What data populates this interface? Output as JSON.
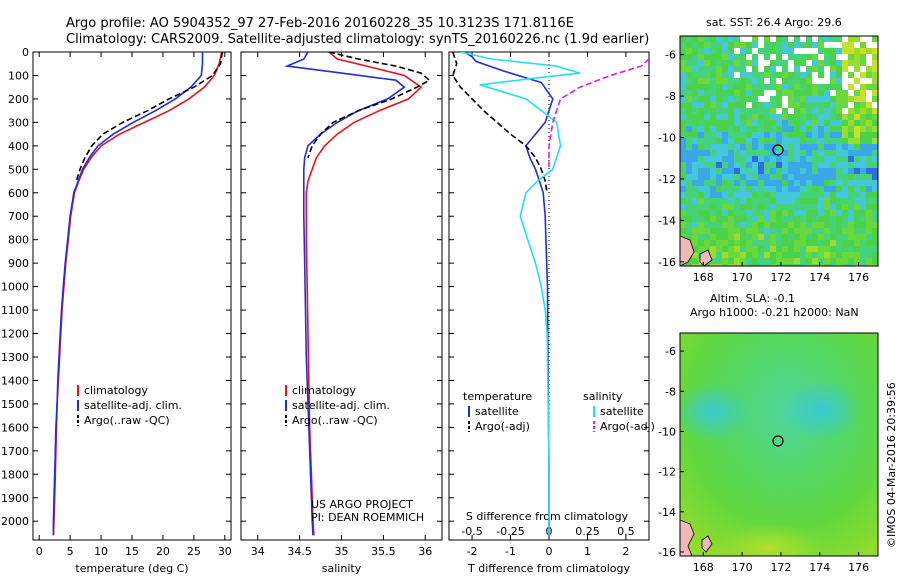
{
  "header": {
    "line1": "Argo profile: AO 5904352_97 27-Feb-2016 20160228_35 10.3123S 171.8116E",
    "line2": "Climatology: CARS2009. Satellite-adjusted climatology: synTS_20160226.nc (1.9d earlier)"
  },
  "footer_stamp": "©IMOS 04-Mar-2016 20:39:56",
  "colors": {
    "climatology": "#e8141a",
    "satellite": "#1f2fd8",
    "argo": "#000000",
    "sat_salinity": "#22e0ef",
    "argo_salinity": "#e020e0"
  },
  "chart_data": [
    {
      "id": "temperature",
      "type": "line",
      "xlabel": "temperature (deg C)",
      "ylabel": "",
      "xlim": [
        -1,
        31
      ],
      "ylim": [
        2080,
        0
      ],
      "xticks": [
        0,
        5,
        10,
        15,
        20,
        25,
        30
      ],
      "yticks": [
        0,
        100,
        200,
        300,
        400,
        500,
        600,
        700,
        800,
        900,
        1000,
        1100,
        1200,
        1300,
        1400,
        1500,
        1600,
        1700,
        1800,
        1900,
        2000
      ],
      "legend": [
        "climatology",
        "satellite-adj. clim.",
        "Argo(..raw -QC)"
      ],
      "series": [
        {
          "name": "climatology",
          "style": "solid",
          "color": "#e8141a",
          "x": [
            29.5,
            29.1,
            28.3,
            26.7,
            24.2,
            21.0,
            17.0,
            13.0,
            10.0,
            8.4,
            7.2,
            6.4,
            5.7,
            5.1,
            4.7,
            4.3,
            4.0,
            3.7,
            3.5,
            3.3,
            3.1,
            2.9,
            2.8,
            2.7,
            2.6,
            2.5,
            2.4,
            2.3
          ],
          "y": [
            0,
            50,
            100,
            150,
            200,
            250,
            300,
            350,
            400,
            450,
            500,
            550,
            600,
            700,
            800,
            900,
            1000,
            1100,
            1200,
            1300,
            1400,
            1500,
            1600,
            1700,
            1800,
            1900,
            2000,
            2060
          ]
        },
        {
          "name": "satellite-adj. clim.",
          "style": "solid",
          "color": "#1f2fd8",
          "x": [
            26.4,
            26.4,
            26.2,
            24.5,
            22.0,
            18.8,
            15.2,
            12.0,
            9.5,
            8.1,
            7.0,
            6.3,
            5.6,
            5.0,
            4.6,
            4.2,
            3.9,
            3.6,
            3.4,
            3.2,
            3.0,
            2.9,
            2.7,
            2.6,
            2.5,
            2.4,
            2.3,
            2.3
          ],
          "y": [
            0,
            50,
            100,
            150,
            200,
            250,
            300,
            350,
            400,
            450,
            500,
            550,
            600,
            700,
            800,
            900,
            1000,
            1100,
            1200,
            1300,
            1400,
            1500,
            1600,
            1700,
            1800,
            1900,
            2000,
            2060
          ]
        },
        {
          "name": "Argo(..raw -QC)",
          "style": "dashed",
          "color": "#000000",
          "x": [
            29.6,
            29.3,
            28.0,
            25.0,
            21.0,
            17.5,
            13.5,
            10.3,
            8.5,
            7.4,
            6.6,
            6.0
          ],
          "y": [
            0,
            50,
            100,
            150,
            200,
            250,
            300,
            350,
            400,
            450,
            500,
            550
          ]
        }
      ]
    },
    {
      "id": "salinity",
      "type": "line",
      "xlabel": "salinity",
      "ylabel": "",
      "xlim": [
        33.8,
        36.2
      ],
      "ylim": [
        2080,
        0
      ],
      "xticks": [
        34,
        34.5,
        35,
        35.5,
        36
      ],
      "xticklabels": [
        "34",
        "34.5",
        "35",
        "35.5",
        "36"
      ],
      "legend": [
        "climatology",
        "satellite-adj. clim.",
        "Argo(..raw -QC)"
      ],
      "annotation": [
        "US ARGO PROJECT",
        "PI: DEAN ROEMMICH"
      ],
      "series": [
        {
          "name": "climatology",
          "style": "solid",
          "color": "#e8141a",
          "x": [
            34.85,
            34.95,
            35.3,
            35.75,
            35.95,
            35.8,
            35.45,
            35.15,
            34.95,
            34.8,
            34.7,
            34.65,
            34.6,
            34.58,
            34.58,
            34.58,
            34.59,
            34.6,
            34.61,
            34.62,
            34.63,
            34.64,
            34.65,
            34.66,
            34.67
          ],
          "y": [
            0,
            30,
            60,
            100,
            150,
            200,
            250,
            300,
            350,
            400,
            450,
            500,
            550,
            600,
            700,
            800,
            1000,
            1200,
            1400,
            1600,
            1700,
            1800,
            1900,
            2000,
            2060
          ]
        },
        {
          "name": "satellite-adj. clim.",
          "style": "solid",
          "color": "#1f2fd8",
          "x": [
            34.6,
            34.55,
            34.35,
            35.0,
            35.65,
            35.75,
            35.55,
            35.2,
            34.95,
            34.75,
            34.6,
            34.56,
            34.55,
            34.55,
            34.55,
            34.56,
            34.57,
            34.58,
            34.6,
            34.62,
            34.64,
            34.65,
            34.66
          ],
          "y": [
            0,
            30,
            60,
            90,
            120,
            150,
            200,
            250,
            300,
            350,
            400,
            450,
            500,
            600,
            700,
            900,
            1100,
            1300,
            1500,
            1700,
            1900,
            2000,
            2060
          ]
        },
        {
          "name": "Argo(..raw -QC)",
          "style": "dashed",
          "color": "#000000",
          "x": [
            34.85,
            35.2,
            35.65,
            35.95,
            36.05,
            35.9,
            35.6,
            35.2,
            34.9,
            34.75,
            34.65,
            34.6
          ],
          "y": [
            0,
            30,
            60,
            90,
            120,
            150,
            200,
            250,
            300,
            350,
            400,
            450
          ]
        }
      ]
    },
    {
      "id": "difference",
      "type": "line",
      "xlabel": "T difference from climatology",
      "x2label": "S difference from climatology",
      "xlim": [
        -2.6,
        2.6
      ],
      "ylim": [
        2080,
        0
      ],
      "xticks": [
        -2,
        -1,
        0,
        1,
        2
      ],
      "x2ticks": [
        -0.5,
        -0.25,
        0,
        0.25,
        0.5
      ],
      "x2ticklabels": [
        "-0.5",
        "-0.25",
        "0",
        "0.25",
        "0.5"
      ],
      "legend_title_t": "temperature",
      "legend_title_s": "salinity",
      "legend": [
        "satellite",
        "Argo(-adj)",
        "satellite",
        "Argo(-adj)"
      ],
      "series": [
        {
          "name": "satellite",
          "quantity": "temperature",
          "style": "solid",
          "color": "#1f2fd8",
          "x": [
            -2.2,
            -2.0,
            -1.9,
            -1.2,
            -0.2,
            0.1,
            -0.1,
            -0.35,
            -0.6,
            -0.5,
            -0.35,
            -0.25,
            -0.15,
            -0.1,
            -0.08,
            -0.06,
            -0.04,
            -0.03,
            -0.02,
            -0.01,
            0.0,
            0.0
          ],
          "y": [
            0,
            20,
            40,
            80,
            130,
            200,
            300,
            350,
            400,
            450,
            500,
            550,
            600,
            700,
            800,
            900,
            1000,
            1200,
            1400,
            1600,
            1800,
            2060
          ]
        },
        {
          "name": "Argo(-adj)",
          "quantity": "temperature",
          "style": "dashed",
          "color": "#000000",
          "x": [
            -2.5,
            -2.4,
            -2.5,
            -2.3,
            -2.0,
            -1.7,
            -1.35,
            -1.0,
            -0.6,
            -0.35,
            -0.2,
            -0.1,
            -0.05
          ],
          "y": [
            0,
            50,
            100,
            150,
            200,
            250,
            300,
            350,
            400,
            450,
            500,
            550,
            600
          ]
        },
        {
          "name": "satellite",
          "quantity": "salinity",
          "style": "solid",
          "color": "#22e0ef",
          "x": [
            -2.3,
            -1.5,
            0.2,
            0.8,
            -0.3,
            -1.8,
            -0.6,
            0.2,
            0.3,
            0.1,
            -0.3,
            -0.6,
            -0.75,
            -0.55,
            -0.35,
            -0.2,
            -0.1,
            -0.05,
            -0.03,
            -0.01,
            0.0,
            0.0
          ],
          "y": [
            0,
            30,
            60,
            90,
            110,
            140,
            200,
            300,
            400,
            500,
            550,
            600,
            700,
            800,
            900,
            1000,
            1100,
            1200,
            1400,
            1600,
            1800,
            2060
          ]
        },
        {
          "name": "Argo(-adj)",
          "quantity": "salinity",
          "style": "dashed",
          "color": "#e020e0",
          "x": [
            2.6,
            2.4,
            1.6,
            0.8,
            0.3,
            0.1,
            0.0,
            0.0
          ],
          "y": [
            30,
            60,
            100,
            150,
            200,
            300,
            400,
            500
          ]
        }
      ]
    }
  ],
  "maps": [
    {
      "id": "sst-map",
      "title": "sat. SST: 26.4  Argo: 29.6",
      "xticks": [
        168,
        170,
        172,
        174,
        176
      ],
      "yticks": [
        -6,
        -8,
        -10,
        -12,
        -14,
        -16
      ],
      "marker": {
        "lon": 171.8,
        "lat": -10.3
      }
    },
    {
      "id": "sla-map",
      "title_line1": "Altim. SLA: -0.1",
      "title_line2": "Argo h1000: -0.21 h2000: NaN",
      "xticks": [
        168,
        170,
        172,
        174,
        176
      ],
      "yticks": [
        -6,
        -8,
        -10,
        -12,
        -14,
        -16
      ],
      "marker": {
        "lon": 171.8,
        "lat": -10.3
      }
    }
  ]
}
